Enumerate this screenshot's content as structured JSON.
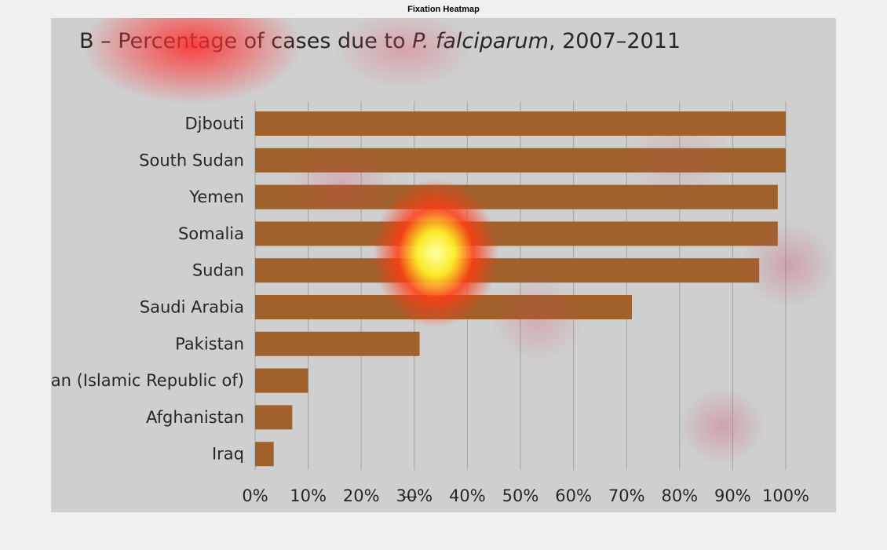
{
  "window": {
    "title": "Fixation Heatmap"
  },
  "chart_data": {
    "type": "bar",
    "orientation": "horizontal",
    "title_prefix": "B – Percentage of cases due to ",
    "title_species": "P. falciparum",
    "title_suffix": ", 2007–2011",
    "categories": [
      "Djbouti",
      "South Sudan",
      "Yemen",
      "Somalia",
      "Sudan",
      "Saudi Arabia",
      "Pakistan",
      "Iran (Islamic Republic of)",
      "Afghanistan",
      "Iraq"
    ],
    "values": [
      100,
      100,
      98.5,
      98.5,
      95,
      71,
      31,
      10,
      7,
      3.5
    ],
    "xlim": [
      0,
      100
    ],
    "ticks": [
      "0%",
      "10%",
      "20%",
      "30%",
      "40%",
      "50%",
      "60%",
      "70%",
      "80%",
      "90%",
      "100%"
    ],
    "grid": true,
    "bar_color": "#a0612c"
  },
  "heatmap": {
    "overlay": "fixation heatmap",
    "colors": [
      "#ffff80",
      "#ff2020",
      "#c45a6a"
    ]
  }
}
